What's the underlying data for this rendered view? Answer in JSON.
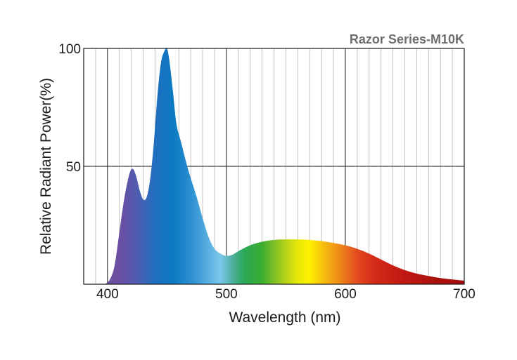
{
  "chart_data": {
    "type": "area",
    "title": "Razor Series-M10K",
    "xlabel": "Wavelength (nm)",
    "ylabel": "Relative Radiant Power(%)",
    "xlim": [
      380,
      700
    ],
    "ylim": [
      0,
      100
    ],
    "x_ticks": [
      "400",
      "500",
      "600",
      "700"
    ],
    "y_ticks": [
      "50",
      "100"
    ],
    "grid": true,
    "fill": "visible-spectrum gradient",
    "series": [
      {
        "x": [
          398,
          402,
          406,
          410,
          414,
          418,
          421,
          424,
          427,
          430,
          433,
          436,
          439,
          442,
          445,
          448,
          450,
          452,
          455,
          458,
          462,
          466,
          470,
          475,
          480,
          485,
          490,
          495,
          500,
          505,
          510,
          520,
          530,
          540,
          550,
          560,
          570,
          580,
          590,
          600,
          610,
          620,
          630,
          640,
          650,
          660,
          670,
          680,
          690,
          700
        ],
        "y": [
          0,
          2,
          8,
          22,
          36,
          46,
          49,
          46,
          40,
          36,
          37,
          45,
          60,
          80,
          94,
          99,
          100,
          95,
          82,
          68,
          60,
          52,
          45,
          37,
          28,
          20,
          15,
          13,
          12,
          12.5,
          14,
          16.5,
          18,
          18.8,
          19,
          19,
          18.8,
          18.3,
          17.5,
          16.5,
          15,
          13,
          10.5,
          8,
          6,
          4.5,
          3.5,
          2.6,
          2,
          1.5
        ]
      }
    ]
  }
}
